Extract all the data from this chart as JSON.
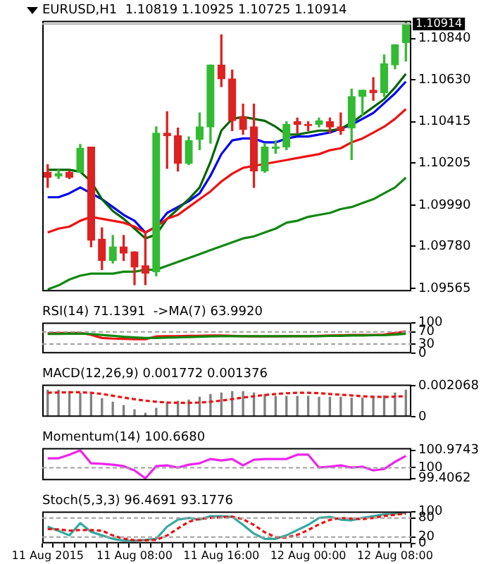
{
  "chart_data": [
    {
      "type": "candlestick",
      "title": "EURUSD,H1  1.10819 1.10925 1.10725 1.10914",
      "tick_labels": "y",
      "categories": [
        null,
        null,
        null,
        null,
        null,
        null,
        null,
        null,
        null,
        null,
        null,
        null,
        null,
        null,
        null,
        null,
        null,
        null,
        null,
        null,
        null,
        null,
        null,
        null,
        null,
        null,
        null,
        null,
        null,
        null,
        null,
        null,
        null,
        null
      ],
      "ohlc": [
        [
          1.10157,
          1.10196,
          1.1008,
          1.10132
        ],
        [
          1.10138,
          1.1017,
          1.10125,
          1.10151
        ],
        [
          1.10157,
          1.10164,
          1.10125,
          1.10132
        ],
        [
          1.10157,
          1.10299,
          1.10157,
          1.1028
        ],
        [
          1.10286,
          1.10286,
          1.09777,
          1.0981
        ],
        [
          1.09816,
          1.09874,
          1.09661,
          1.09707
        ],
        [
          1.09707,
          1.09835,
          1.09694,
          1.09777
        ],
        [
          1.09777,
          1.09835,
          1.09707,
          1.09745
        ],
        [
          1.09752,
          1.09752,
          1.09584,
          1.09674
        ],
        [
          1.09681,
          1.09855,
          1.09584,
          1.09642
        ],
        [
          1.09649,
          1.10389,
          1.09629,
          1.10357
        ],
        [
          1.10357,
          1.10467,
          1.10177,
          1.10344
        ],
        [
          1.10344,
          1.10383,
          1.10164,
          1.10202
        ],
        [
          1.10202,
          1.10338,
          1.10196,
          1.10318
        ],
        [
          1.10325,
          1.1046,
          1.10273,
          1.10389
        ],
        [
          1.10389,
          1.10705,
          1.10306,
          1.10705
        ],
        [
          1.10705,
          1.10859,
          1.10595,
          1.10634
        ],
        [
          1.10634,
          1.10679,
          1.1037,
          1.10421
        ],
        [
          1.10441,
          1.10505,
          1.10351,
          1.10376
        ],
        [
          1.10389,
          1.10505,
          1.1008,
          1.10164
        ],
        [
          1.10164,
          1.10306,
          1.10157,
          1.10286
        ],
        [
          1.1028,
          1.10318,
          1.10254,
          1.10286
        ],
        [
          1.10286,
          1.10415,
          1.10273,
          1.10402
        ],
        [
          1.10415,
          1.10434,
          1.10357,
          1.10402
        ],
        [
          1.10402,
          1.10415,
          1.1037,
          1.10396
        ],
        [
          1.10402,
          1.10434,
          1.10389,
          1.10421
        ],
        [
          1.10415,
          1.10434,
          1.10357,
          1.10389
        ],
        [
          1.10389,
          1.1046,
          1.10351,
          1.1037
        ],
        [
          1.10383,
          1.10582,
          1.10222,
          1.10544
        ],
        [
          1.10544,
          1.10576,
          1.10447,
          1.10576
        ],
        [
          1.10576,
          1.1064,
          1.10524,
          1.10563
        ],
        [
          1.10563,
          1.10756,
          1.10544,
          1.10711
        ],
        [
          1.10705,
          1.10808,
          1.10685,
          1.10808
        ],
        [
          1.10819,
          1.10925,
          1.10725,
          1.10914
        ]
      ],
      "colors": [
        "#dd2222",
        "#33bb33",
        "#dd2222",
        "#33bb33",
        "#dd2222",
        "#dd2222",
        "#33bb33",
        "#dd2222",
        "#dd2222",
        "#dd2222",
        "#33bb33",
        "#dd2222",
        "#dd2222",
        "#33bb33",
        "#33bb33",
        "#33bb33",
        "#dd2222",
        "#dd2222",
        "#dd2222",
        "#dd2222",
        "#33bb33",
        "#33bb33",
        "#33bb33",
        "#dd2222",
        "#dd2222",
        "#33bb33",
        "#dd2222",
        "#dd2222",
        "#33bb33",
        "#33bb33",
        "#dd2222",
        "#33bb33",
        "#33bb33",
        "#33bb33"
      ],
      "series": [
        {
          "type": "line",
          "color": "#118811",
          "values": [
            1.0956,
            1.0958,
            1.0961,
            1.0963,
            1.0964,
            1.0964,
            1.0964,
            1.0965,
            1.0965,
            1.0966,
            1.0966,
            1.0968,
            1.097,
            1.0972,
            1.0974,
            1.0976,
            1.0978,
            1.098,
            1.0982,
            1.0983,
            1.0985,
            1.0987,
            1.099,
            1.0991,
            1.0993,
            1.0994,
            1.0995,
            1.0997,
            1.0998,
            1.1,
            1.1002,
            1.1005,
            1.1008,
            1.1013
          ]
        },
        {
          "type": "line",
          "color": "#ee1111",
          "values": [
            1.0985,
            1.0987,
            1.0988,
            1.0991,
            1.0993,
            1.0992,
            1.0991,
            1.099,
            1.0988,
            1.0985,
            1.0988,
            1.0992,
            1.0994,
            1.0998,
            1.1002,
            1.1006,
            1.1011,
            1.1015,
            1.1018,
            1.1019,
            1.102,
            1.1021,
            1.1022,
            1.1023,
            1.1024,
            1.1025,
            1.1027,
            1.1028,
            1.1031,
            1.1033,
            1.1036,
            1.1039,
            1.1043,
            1.1048
          ]
        },
        {
          "type": "line",
          "color": "#006600",
          "values": [
            1.1017,
            1.1017,
            1.1017,
            1.1016,
            1.1011,
            1.1002,
            1.0996,
            1.0992,
            1.0987,
            1.0982,
            1.0984,
            1.0992,
            1.0997,
            1.1002,
            1.1008,
            1.1021,
            1.1037,
            1.1043,
            1.1044,
            1.1043,
            1.1042,
            1.1039,
            1.1035,
            1.1035,
            1.1036,
            1.1037,
            1.1037,
            1.1038,
            1.1041,
            1.1045,
            1.1049,
            1.1053,
            1.1059,
            1.1066
          ]
        },
        {
          "type": "line",
          "color": "#0000ee",
          "values": [
            1.1003,
            1.1003,
            1.1005,
            1.1008,
            1.1005,
            1.1002,
            1.0998,
            1.0994,
            1.0991,
            1.0985,
            1.0988,
            1.0995,
            1.0998,
            1.1001,
            1.1005,
            1.1014,
            1.1025,
            1.1032,
            1.1033,
            1.1033,
            1.1031,
            1.1031,
            1.1033,
            1.1034,
            1.1034,
            1.1035,
            1.1036,
            1.1038,
            1.104,
            1.1043,
            1.1046,
            1.1051,
            1.1056,
            1.1062
          ]
        }
      ],
      "ylim": [
        1.0955,
        1.1093
      ],
      "yticks": [
        1.09565,
        {
          "value": 1.0978,
          "label": "1.09780"
        },
        {
          "value": 1.0999,
          "label": "1.09990"
        },
        1.10205,
        1.10415,
        {
          "value": 1.1063,
          "label": "1.10630"
        },
        {
          "value": 1.1084,
          "label": "1.10840"
        }
      ],
      "ref_lines": [
        {
          "axis": "y",
          "value": 1.10914,
          "label": "1.10914",
          "color": "#b0b0b0"
        }
      ]
    },
    {
      "type": "line",
      "title": "RSI(14) 71.1391  ->MA(7) 63.9920",
      "tick_labels": "y",
      "categories": [
        null,
        null,
        null,
        null,
        null,
        null,
        null,
        null,
        null,
        null,
        null,
        null,
        null,
        null,
        null,
        null,
        null,
        null,
        null,
        null,
        null,
        null,
        null,
        null,
        null,
        null,
        null,
        null,
        null,
        null,
        null,
        null,
        null,
        null
      ],
      "series": [
        {
          "color": "#118811",
          "values": [
            63,
            63,
            64,
            64,
            63,
            60,
            57,
            54,
            52,
            50,
            50,
            51,
            52,
            53,
            54,
            55,
            56,
            56,
            56,
            56,
            56,
            56,
            56,
            56,
            56,
            56,
            57,
            57,
            58,
            58,
            59,
            59,
            61,
            63.992
          ]
        },
        {
          "color": "#ee1111",
          "values": [
            65,
            66,
            66,
            67,
            60,
            50,
            48,
            47,
            46,
            46,
            55,
            56,
            56,
            57,
            57,
            58,
            58,
            57,
            56,
            55,
            55,
            55,
            56,
            56,
            56,
            57,
            58,
            59,
            60,
            60,
            60,
            61,
            66,
            71.1391
          ]
        }
      ],
      "ylim": [
        0,
        100
      ],
      "yticks": [
        0,
        30,
        70,
        100
      ],
      "ref_lines": [
        {
          "axis": "y",
          "value": 70,
          "color": "#a0a0a0",
          "line_style": "dashed"
        },
        {
          "axis": "y",
          "value": 30,
          "color": "#a0a0a0",
          "line_style": "dashed"
        }
      ]
    },
    {
      "type": "bar",
      "title": "MACD(12,26,9) 0.001772 0.001376",
      "tick_labels": "y",
      "categories": [
        null,
        null,
        null,
        null,
        null,
        null,
        null,
        null,
        null,
        null,
        null,
        null,
        null,
        null,
        null,
        null,
        null,
        null,
        null,
        null,
        null,
        null,
        null,
        null,
        null,
        null,
        null,
        null,
        null,
        null,
        null,
        null,
        null,
        null
      ],
      "series": [
        {
          "type": "bar",
          "color": "#808080",
          "values": [
            0.00177,
            0.00177,
            0.00168,
            0.00159,
            0.00149,
            0.00121,
            0.00097,
            0.00075,
            0.00047,
            0.00024,
            0.00056,
            0.00093,
            0.00103,
            0.00112,
            0.00131,
            0.00149,
            0.00159,
            0.00168,
            0.00168,
            0.00159,
            0.00149,
            0.00136,
            0.00136,
            0.00136,
            0.00136,
            0.00131,
            0.00131,
            0.00131,
            0.00125,
            0.00125,
            0.00131,
            0.0014,
            0.00159,
            0.001772
          ]
        },
        {
          "type": "line",
          "color": "#ee1111",
          "line_style": "dashed",
          "values": [
            0.0016,
            0.00162,
            0.00163,
            0.00163,
            0.0016,
            0.00152,
            0.0014,
            0.00128,
            0.00117,
            0.00107,
            0.001,
            0.00095,
            0.00093,
            0.00093,
            0.00095,
            0.001,
            0.00108,
            0.00118,
            0.00128,
            0.00137,
            0.00145,
            0.00152,
            0.00157,
            0.0016,
            0.0016,
            0.00157,
            0.00152,
            0.00147,
            0.00142,
            0.00137,
            0.00133,
            0.00132,
            0.00134,
            0.001376
          ]
        }
      ],
      "ylim": [
        0,
        0.00214
      ],
      "yticks": [
        0,
        0.002068
      ]
    },
    {
      "type": "line",
      "title": "Momentum(14) 100.6680",
      "tick_labels": "y",
      "categories": [
        null,
        null,
        null,
        null,
        null,
        null,
        null,
        null,
        null,
        null,
        null,
        null,
        null,
        null,
        null,
        null,
        null,
        null,
        null,
        null,
        null,
        null,
        null,
        null,
        null,
        null,
        null,
        null,
        null,
        null,
        null,
        null,
        null,
        null
      ],
      "series": [
        {
          "color": "#ee22ee",
          "values": [
            100.53,
            100.53,
            100.73,
            100.9743,
            100.25,
            100.22,
            100.17,
            100.09,
            99.85,
            99.4062,
            100.09,
            100.13,
            100.01,
            100.17,
            100.25,
            100.49,
            100.41,
            100.49,
            100.13,
            100.45,
            100.49,
            100.49,
            100.49,
            100.73,
            100.73,
            100.01,
            100.06,
            100.13,
            100.01,
            100.06,
            99.85,
            99.93,
            100.33,
            100.668
          ]
        }
      ],
      "ylim": [
        99.3,
        101.1
      ],
      "yticks": [
        99.4062,
        100,
        100.9743
      ],
      "ref_lines": [
        {
          "axis": "y",
          "value": 100,
          "color": "#a0a0a0",
          "line_style": "dashed"
        }
      ]
    },
    {
      "type": "line",
      "title": "Stoch(5,3,3) 96.4691 93.1776",
      "categories": [
        "11 Aug 2015",
        null,
        null,
        null,
        null,
        null,
        null,
        null,
        "11 Aug 08:00",
        null,
        null,
        null,
        null,
        null,
        null,
        null,
        "11 Aug 16:00",
        null,
        null,
        null,
        null,
        null,
        null,
        null,
        "12 Aug 00:00",
        null,
        null,
        null,
        null,
        null,
        null,
        null,
        "12 Aug 08:00",
        null
      ],
      "series": [
        {
          "color": "#ee1111",
          "line_style": "dashed",
          "values": [
            45,
            44,
            40,
            42,
            42,
            40,
            25,
            15,
            10,
            10,
            11,
            25,
            47,
            68,
            77,
            80,
            82,
            84,
            76,
            58,
            35,
            20,
            18,
            27,
            42,
            60,
            74,
            80,
            78,
            76,
            80,
            86,
            90,
            93.1776
          ]
        },
        {
          "color": "#33aaa0",
          "values": [
            52.7,
            39.6,
            25.3,
            63.7,
            36.3,
            25.3,
            14.3,
            8.8,
            8.8,
            11,
            14.3,
            52.7,
            74.7,
            80.2,
            74.7,
            85.7,
            85.7,
            83.5,
            58.2,
            30.8,
            14.3,
            14.3,
            25.3,
            41.8,
            58.2,
            80.2,
            83.5,
            74.7,
            72.5,
            80.2,
            85.7,
            91.2,
            93,
            96.4691
          ]
        }
      ],
      "ylim": [
        0,
        100
      ],
      "yticks": [
        0,
        20,
        80,
        100
      ],
      "ref_lines": [
        {
          "axis": "y",
          "value": 80,
          "color": "#a0a0a0",
          "line_style": "dashed"
        },
        {
          "axis": "y",
          "value": 20,
          "color": "#a0a0a0",
          "line_style": "dashed"
        }
      ]
    }
  ]
}
